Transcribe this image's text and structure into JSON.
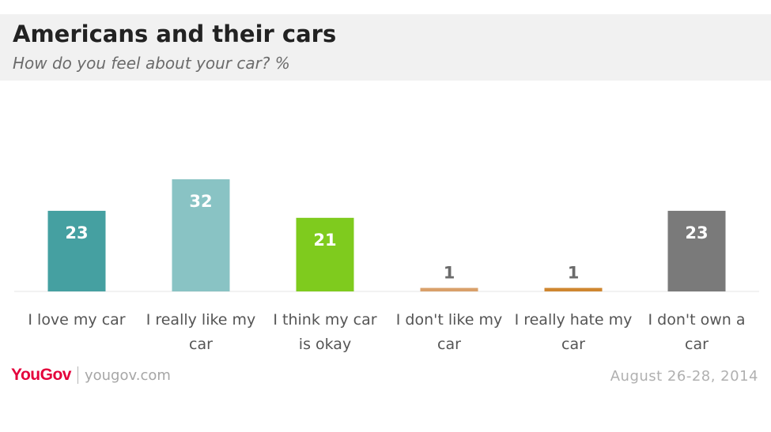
{
  "header": {
    "title": "Americans and their cars",
    "subtitle": "How do you feel about your car? %"
  },
  "footer": {
    "brand": "YouGov",
    "url": "yougov.com",
    "date": "August 26-28, 2014"
  },
  "chart_data": {
    "type": "bar",
    "title": "Americans and their cars",
    "subtitle": "How do you feel about your car? %",
    "xlabel": "",
    "ylabel": "",
    "categories": [
      [
        "I love my car"
      ],
      [
        "I really like my",
        "car"
      ],
      [
        "I think my car",
        "is okay"
      ],
      [
        "I don't like my",
        "car"
      ],
      [
        "I really hate my",
        "car"
      ],
      [
        "I don't own a",
        "car"
      ]
    ],
    "values": [
      23,
      32,
      21,
      1,
      1,
      23
    ],
    "colors": [
      "#45a0a1",
      "#89c3c4",
      "#7fcb1e",
      "#d9a06a",
      "#cf8630",
      "#7a7a7a"
    ],
    "label_colors": [
      "#ffffff",
      "#ffffff",
      "#ffffff",
      "#6b6b6b",
      "#6b6b6b",
      "#ffffff"
    ],
    "data_labels": [
      "23",
      "32",
      "21",
      "1",
      "1",
      "23"
    ],
    "ylim": [
      0,
      32
    ],
    "grid": false,
    "legend": "none"
  }
}
